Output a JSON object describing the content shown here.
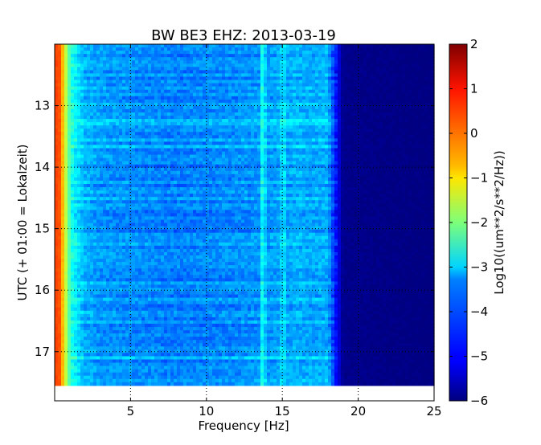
{
  "chart_data": {
    "type": "heatmap",
    "title": "BW BE3 EHZ: 2013-03-19",
    "xlabel": "Frequency [Hz]",
    "ylabel": "UTC (+ 01:00 = Lokalzeit)",
    "xlim": [
      0,
      25
    ],
    "ylim_hours": [
      12.0,
      17.8
    ],
    "data_end_hour": 17.55,
    "x_ticks": [
      5,
      10,
      15,
      20,
      25
    ],
    "x_tick_labels": [
      "5",
      "10",
      "15",
      "20",
      "25"
    ],
    "y_ticks": [
      13,
      14,
      15,
      16,
      17
    ],
    "y_tick_labels": [
      "13",
      "14",
      "15",
      "16",
      "17"
    ],
    "grid": "dotted",
    "colorbar": {
      "label": "Log10((um**2/s**2/Hz))",
      "vmin": -6,
      "vmax": 2,
      "ticks": [
        2,
        1,
        0,
        -1,
        -2,
        -3,
        -4,
        -5,
        -6
      ],
      "tick_labels": [
        "2",
        "1",
        "0",
        "−1",
        "−2",
        "−3",
        "−4",
        "−5",
        "−6"
      ],
      "colormap": "jet"
    },
    "spectrum_profile": {
      "frequency_hz": [
        0.0,
        0.2,
        0.4,
        0.6,
        0.8,
        1.0,
        1.2,
        1.5,
        2.0,
        3.0,
        5.0,
        8.0,
        12.0,
        13.5,
        13.7,
        14.0,
        14.9,
        15.0,
        15.3,
        16.0,
        17.0,
        18.0,
        18.4,
        19.0,
        25.0
      ],
      "log10_psd": [
        0.3,
        0.6,
        0.2,
        -0.8,
        -1.8,
        -2.5,
        -2.9,
        -3.2,
        -3.6,
        -3.8,
        -3.9,
        -4.0,
        -3.9,
        -3.8,
        -2.8,
        -3.8,
        -3.7,
        -2.9,
        -3.7,
        -3.6,
        -3.7,
        -3.6,
        -4.6,
        -5.9,
        -6.0
      ]
    }
  }
}
